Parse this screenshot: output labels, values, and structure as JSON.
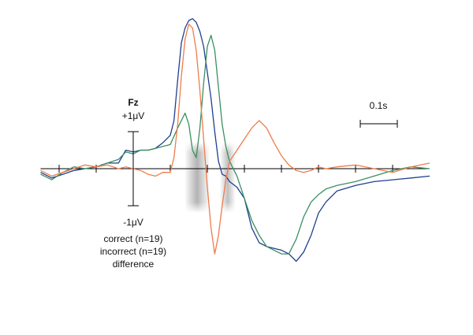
{
  "chart_data": {
    "type": "line",
    "title": "",
    "channel_label": "Fz",
    "y_scale_labels": {
      "top": "+1μV",
      "bottom": "-1μV"
    },
    "y_scale_uv": 1,
    "time_scale_label": "0.1s",
    "time_scale_s": 0.1,
    "x_unit": "s",
    "y_unit": "μV",
    "x_range": [
      -0.25,
      0.8
    ],
    "y_range": [
      -2.5,
      4.2
    ],
    "tick_interval_s": 0.1,
    "grid": false,
    "legend_position": "bottom-left",
    "shaded_windows": [
      {
        "range": [
          0.14,
          0.205
        ],
        "peak_opacity": 0.85
      },
      {
        "range": [
          0.235,
          0.275
        ],
        "peak_opacity": 0.7
      }
    ],
    "series": [
      {
        "name": "correct (n=19)",
        "color": "#1f3f8f",
        "x": [
          -0.25,
          -0.22,
          -0.19,
          -0.16,
          -0.13,
          -0.1,
          -0.07,
          -0.04,
          -0.02,
          0.0,
          0.02,
          0.04,
          0.06,
          0.08,
          0.1,
          0.11,
          0.12,
          0.13,
          0.14,
          0.15,
          0.16,
          0.17,
          0.18,
          0.19,
          0.2,
          0.21,
          0.22,
          0.23,
          0.24,
          0.25,
          0.26,
          0.28,
          0.3,
          0.32,
          0.34,
          0.36,
          0.38,
          0.4,
          0.42,
          0.44,
          0.46,
          0.48,
          0.5,
          0.52,
          0.55,
          0.6,
          0.65,
          0.7,
          0.75,
          0.8
        ],
        "y": [
          -0.1,
          -0.25,
          -0.15,
          -0.05,
          0.0,
          0.05,
          0.15,
          0.15,
          0.5,
          0.45,
          0.5,
          0.5,
          0.55,
          0.7,
          0.9,
          1.3,
          2.4,
          3.4,
          3.8,
          4.0,
          4.05,
          3.95,
          3.7,
          3.3,
          2.6,
          1.9,
          1.0,
          0.2,
          -0.15,
          -0.2,
          -0.35,
          -0.5,
          -0.8,
          -1.6,
          -2.0,
          -2.1,
          -2.15,
          -2.2,
          -2.3,
          -2.5,
          -2.25,
          -1.8,
          -1.2,
          -0.9,
          -0.6,
          -0.45,
          -0.35,
          -0.3,
          -0.25,
          -0.2
        ]
      },
      {
        "name": "incorrect (n=19)",
        "color": "#3a8f62",
        "x": [
          -0.25,
          -0.22,
          -0.19,
          -0.16,
          -0.13,
          -0.1,
          -0.07,
          -0.04,
          -0.02,
          0.0,
          0.02,
          0.04,
          0.06,
          0.08,
          0.1,
          0.12,
          0.14,
          0.15,
          0.16,
          0.17,
          0.18,
          0.19,
          0.2,
          0.21,
          0.22,
          0.23,
          0.24,
          0.25,
          0.26,
          0.28,
          0.3,
          0.32,
          0.34,
          0.36,
          0.38,
          0.4,
          0.42,
          0.44,
          0.46,
          0.48,
          0.5,
          0.52,
          0.55,
          0.6,
          0.65,
          0.7,
          0.75,
          0.8
        ],
        "y": [
          -0.15,
          -0.3,
          -0.1,
          0.05,
          0.0,
          0.05,
          0.15,
          0.25,
          0.45,
          0.4,
          0.5,
          0.5,
          0.55,
          0.6,
          0.65,
          1.1,
          1.5,
          1.2,
          0.5,
          0.3,
          1.1,
          2.3,
          3.3,
          3.6,
          3.2,
          2.2,
          1.2,
          0.6,
          0.2,
          -0.2,
          -0.8,
          -1.4,
          -1.8,
          -2.1,
          -2.2,
          -2.3,
          -2.3,
          -1.9,
          -1.3,
          -0.9,
          -0.7,
          -0.55,
          -0.45,
          -0.35,
          -0.2,
          -0.05,
          0.05,
          0.0
        ]
      },
      {
        "name": "difference",
        "color": "#ef7c4b",
        "x": [
          -0.25,
          -0.22,
          -0.19,
          -0.16,
          -0.13,
          -0.1,
          -0.07,
          -0.04,
          -0.02,
          0.0,
          0.02,
          0.04,
          0.06,
          0.08,
          0.1,
          0.11,
          0.12,
          0.13,
          0.14,
          0.15,
          0.16,
          0.17,
          0.18,
          0.19,
          0.2,
          0.21,
          0.22,
          0.23,
          0.24,
          0.25,
          0.26,
          0.28,
          0.3,
          0.32,
          0.34,
          0.36,
          0.38,
          0.4,
          0.42,
          0.44,
          0.46,
          0.48,
          0.5,
          0.52,
          0.55,
          0.6,
          0.65,
          0.7,
          0.75,
          0.8
        ],
        "y": [
          -0.05,
          -0.2,
          -0.1,
          0.0,
          0.1,
          0.05,
          0.1,
          0.0,
          0.05,
          0.0,
          -0.05,
          -0.15,
          -0.2,
          -0.1,
          -0.1,
          0.3,
          1.2,
          2.5,
          3.5,
          3.9,
          3.8,
          3.2,
          2.1,
          0.8,
          -0.5,
          -1.6,
          -2.3,
          -1.8,
          -1.0,
          -0.3,
          0.2,
          0.5,
          0.8,
          1.1,
          1.3,
          1.1,
          0.7,
          0.35,
          0.1,
          -0.05,
          -0.1,
          -0.05,
          0.05,
          0.0,
          0.05,
          0.1,
          0.0,
          -0.1,
          0.05,
          0.15
        ]
      }
    ]
  }
}
